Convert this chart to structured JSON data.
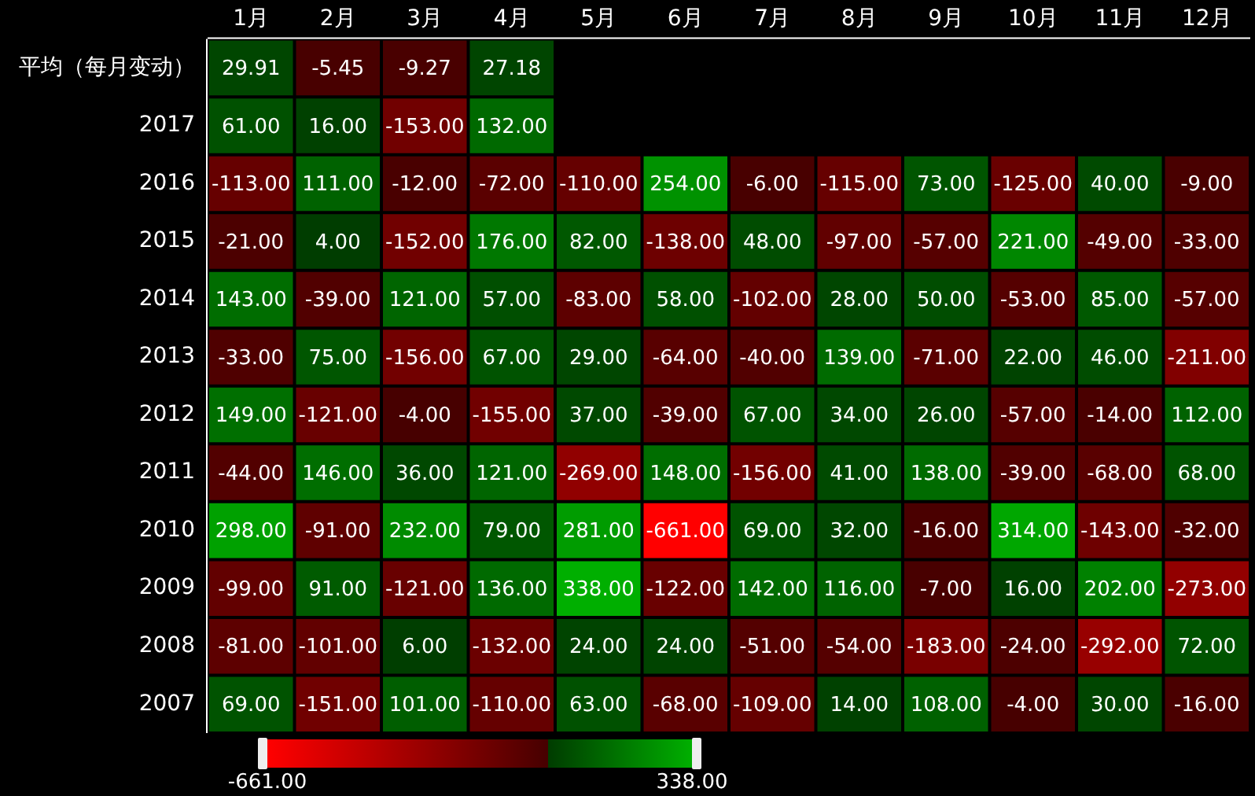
{
  "chart_data": {
    "type": "heatmap",
    "categories": [
      "1月",
      "2月",
      "3月",
      "4月",
      "5月",
      "6月",
      "7月",
      "8月",
      "9月",
      "10月",
      "11月",
      "12月"
    ],
    "y_categories": [
      "平均（每月变动）",
      "2017",
      "2016",
      "2015",
      "2014",
      "2013",
      "2012",
      "2011",
      "2010",
      "2009",
      "2008",
      "2007"
    ],
    "cells": [
      [
        29.91,
        -5.45,
        -9.27,
        27.18,
        null,
        null,
        null,
        null,
        null,
        null,
        null,
        null
      ],
      [
        61,
        16,
        -153,
        132,
        null,
        null,
        null,
        null,
        null,
        null,
        null,
        null
      ],
      [
        -113,
        111,
        -12,
        -72,
        -110,
        254,
        -6,
        -115,
        73,
        -125,
        40,
        -9
      ],
      [
        -21,
        4,
        -152,
        176,
        82,
        -138,
        48,
        -97,
        -57,
        221,
        -49,
        -33
      ],
      [
        143,
        -39,
        121,
        57,
        -83,
        58,
        -102,
        28,
        50,
        -53,
        85,
        -57
      ],
      [
        -33,
        75,
        -156,
        67,
        29,
        -64,
        -40,
        139,
        -71,
        22,
        46,
        -211
      ],
      [
        149,
        -121,
        -4,
        -155,
        37,
        -39,
        67,
        34,
        26,
        -57,
        -14,
        112
      ],
      [
        -44,
        146,
        36,
        121,
        -269,
        148,
        -156,
        41,
        138,
        -39,
        -68,
        68
      ],
      [
        298,
        -91,
        232,
        79,
        281,
        -661,
        69,
        32,
        -16,
        314,
        -143,
        -32
      ],
      [
        -99,
        91,
        -121,
        136,
        338,
        -122,
        142,
        116,
        -7,
        16,
        202,
        -273
      ],
      [
        -81,
        -101,
        6,
        -132,
        24,
        24,
        -51,
        -54,
        -183,
        -24,
        -292,
        72
      ],
      [
        69,
        -151,
        101,
        -110,
        63,
        -68,
        -109,
        14,
        108,
        -4,
        30,
        -16
      ]
    ],
    "cell_labels": [
      [
        "29.91",
        "-5.45",
        "-9.27",
        "27.18",
        null,
        null,
        null,
        null,
        null,
        null,
        null,
        null
      ],
      [
        "61.00",
        "16.00",
        "-153.00",
        "132.00",
        null,
        null,
        null,
        null,
        null,
        null,
        null,
        null
      ],
      [
        "-113.00",
        "111.00",
        "-12.00",
        "-72.00",
        "-110.00",
        "254.00",
        "-6.00",
        "-115.00",
        "73.00",
        "-125.00",
        "40.00",
        "-9.00"
      ],
      [
        "-21.00",
        "4.00",
        "-152.00",
        "176.00",
        "82.00",
        "-138.00",
        "48.00",
        "-97.00",
        "-57.00",
        "221.00",
        "-49.00",
        "-33.00"
      ],
      [
        "143.00",
        "-39.00",
        "121.00",
        "57.00",
        "-83.00",
        "58.00",
        "-102.00",
        "28.00",
        "50.00",
        "-53.00",
        "85.00",
        "-57.00"
      ],
      [
        "-33.00",
        "75.00",
        "-156.00",
        "67.00",
        "29.00",
        "-64.00",
        "-40.00",
        "139.00",
        "-71.00",
        "22.00",
        "46.00",
        "-211.00"
      ],
      [
        "149.00",
        "-121.00",
        "-4.00",
        "-155.00",
        "37.00",
        "-39.00",
        "67.00",
        "34.00",
        "26.00",
        "-57.00",
        "-14.00",
        "112.00"
      ],
      [
        "-44.00",
        "146.00",
        "36.00",
        "121.00",
        "-269.00",
        "148.00",
        "-156.00",
        "41.00",
        "138.00",
        "-39.00",
        "-68.00",
        "68.00"
      ],
      [
        "298.00",
        "-91.00",
        "232.00",
        "79.00",
        "281.00",
        "-661.00",
        "69.00",
        "32.00",
        "-16.00",
        "314.00",
        "-143.00",
        "-32.00"
      ],
      [
        "-99.00",
        "91.00",
        "-121.00",
        "136.00",
        "338.00",
        "-122.00",
        "142.00",
        "116.00",
        "-7.00",
        "16.00",
        "202.00",
        "-273.00"
      ],
      [
        "-81.00",
        "-101.00",
        "6.00",
        "-132.00",
        "24.00",
        "24.00",
        "-51.00",
        "-54.00",
        "-183.00",
        "-24.00",
        "-292.00",
        "72.00"
      ],
      [
        "69.00",
        "-151.00",
        "101.00",
        "-110.00",
        "63.00",
        "-68.00",
        "-109.00",
        "14.00",
        "108.00",
        "-4.00",
        "30.00",
        "-16.00"
      ]
    ],
    "clim": [
      -661,
      338
    ],
    "cticks": [
      {
        "value": -661,
        "label": "-661.00"
      },
      {
        "value": 338,
        "label": "338.00"
      }
    ]
  }
}
